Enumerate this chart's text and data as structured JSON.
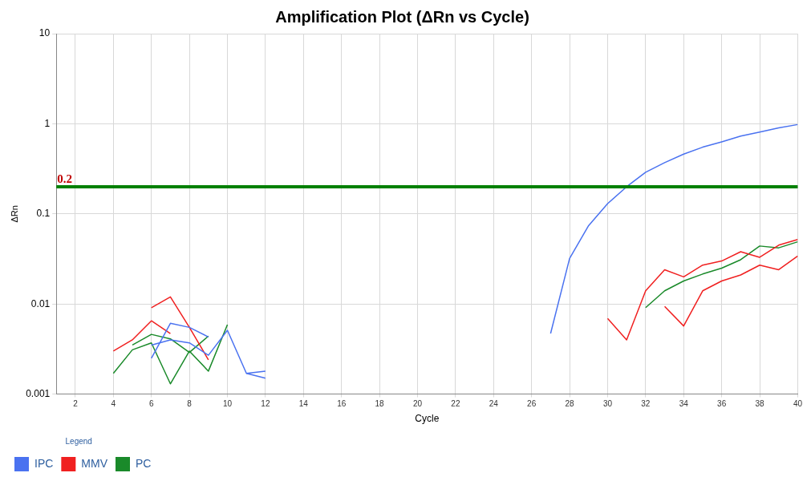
{
  "chart_data": {
    "type": "line",
    "title": "Amplification Plot (ΔRn vs Cycle)",
    "xlabel": "Cycle",
    "ylabel": "ΔRn",
    "legend_title": "Legend",
    "x": [
      4,
      5,
      6,
      7,
      8,
      9,
      10,
      11,
      12,
      13,
      14,
      15,
      16,
      17,
      18,
      19,
      20,
      21,
      22,
      23,
      24,
      25,
      26,
      27,
      28,
      29,
      30,
      31,
      32,
      33,
      34,
      35,
      36,
      37,
      38,
      39,
      40
    ],
    "series": [
      {
        "name": "IPC",
        "color": "#4a72f0",
        "values": [
          null,
          null,
          0.0035,
          0.004,
          0.0037,
          0.0027,
          0.0051,
          0.0017,
          0.0018,
          null,
          null,
          null,
          null,
          null,
          null,
          null,
          null,
          null,
          null,
          null,
          null,
          null,
          null,
          0.0047,
          0.032,
          0.074,
          0.13,
          0.2,
          0.29,
          0.37,
          0.46,
          0.55,
          0.63,
          0.73,
          0.81,
          0.9,
          0.98
        ]
      },
      {
        "color": "#4a72f0",
        "values": [
          null,
          null,
          0.0025,
          0.0061,
          0.0055,
          0.0043,
          null,
          0.0017,
          0.0015,
          null,
          null,
          null,
          null,
          null,
          null,
          null,
          null,
          null,
          null,
          null,
          null,
          null,
          null,
          null,
          null,
          null,
          null,
          null,
          null,
          null,
          null,
          null,
          null,
          null,
          null,
          null,
          null
        ]
      },
      {
        "name": "MMV",
        "color": "#f02020",
        "values": [
          0.003,
          0.004,
          0.0065,
          0.0047,
          null,
          null,
          null,
          null,
          null,
          null,
          null,
          null,
          null,
          null,
          null,
          null,
          null,
          null,
          null,
          null,
          null,
          null,
          null,
          null,
          null,
          null,
          0.0069,
          0.004,
          0.014,
          0.024,
          0.02,
          0.027,
          0.03,
          0.038,
          0.033,
          0.045,
          0.052
        ]
      },
      {
        "color": "#f02020",
        "values": [
          null,
          null,
          0.0091,
          0.012,
          0.0055,
          0.0024,
          null,
          null,
          null,
          null,
          null,
          null,
          null,
          null,
          null,
          null,
          null,
          null,
          null,
          null,
          null,
          null,
          null,
          null,
          null,
          null,
          null,
          null,
          null,
          0.0094,
          0.0057,
          0.014,
          0.018,
          0.021,
          0.027,
          0.024,
          0.034
        ]
      },
      {
        "name": "PC",
        "color": "#1a8a2a",
        "values": [
          0.0017,
          0.0031,
          0.0037,
          0.0013,
          0.003,
          0.0018,
          0.0059,
          null,
          null,
          null,
          null,
          null,
          null,
          null,
          null,
          null,
          null,
          null,
          null,
          null,
          null,
          null,
          null,
          null,
          null,
          null,
          null,
          null,
          0.0091,
          0.014,
          0.018,
          0.0215,
          0.025,
          0.031,
          0.044,
          0.042,
          0.049
        ]
      },
      {
        "color": "#1a8a2a",
        "values": [
          null,
          0.0035,
          0.0046,
          0.0041,
          0.0029,
          0.0044,
          null,
          null,
          null,
          null,
          null,
          null,
          null,
          null,
          null,
          null,
          null,
          null,
          null,
          null,
          null,
          null,
          null,
          null,
          null,
          null,
          null,
          null,
          null,
          null,
          null,
          null,
          null,
          null,
          null,
          null,
          null
        ]
      }
    ],
    "ref_lines": [
      {
        "axis": "y",
        "value": 0.2,
        "label": "0.2",
        "color": "#008000"
      }
    ],
    "log": "y",
    "xlim": [
      1,
      40
    ],
    "ylim": [
      0.001,
      10
    ],
    "xticks": [
      2,
      4,
      6,
      8,
      10,
      12,
      14,
      16,
      18,
      20,
      22,
      24,
      26,
      28,
      30,
      32,
      34,
      36,
      38,
      40
    ],
    "yticks": [
      0.001,
      0.01,
      0.1,
      1,
      10
    ],
    "grid": true,
    "legend": "bottom",
    "marker": "none",
    "line_style": "solid"
  }
}
